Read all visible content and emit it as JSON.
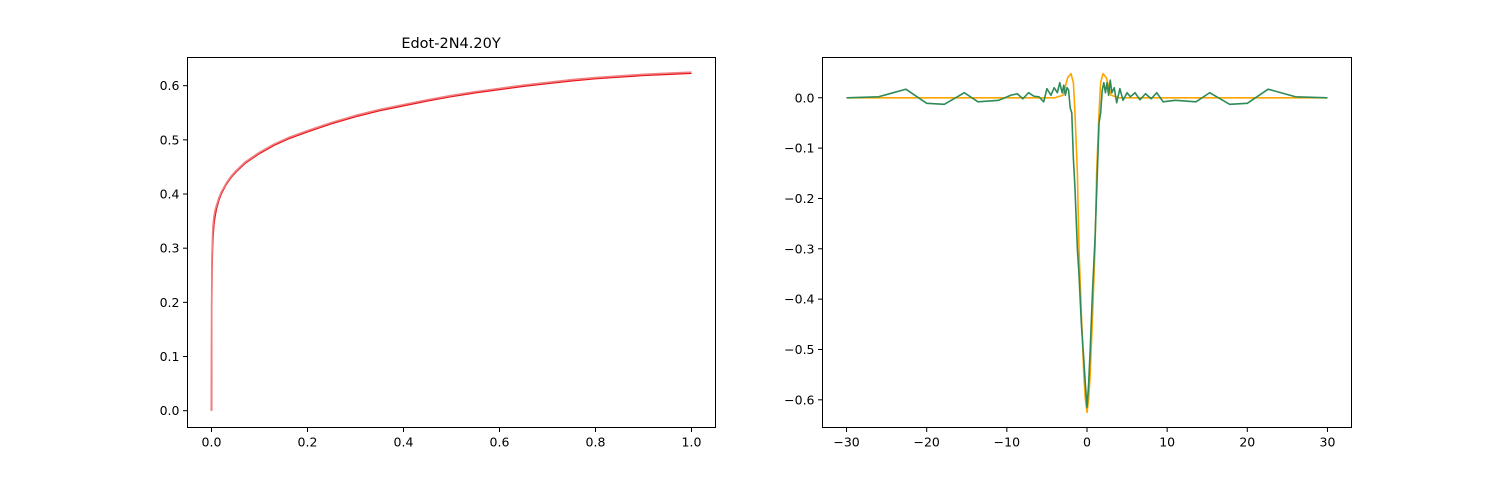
{
  "chart_data": [
    {
      "type": "line",
      "title": "Edot-2N4.20Y",
      "xlabel": "",
      "ylabel": "",
      "xlim": [
        -0.05,
        1.05
      ],
      "ylim": [
        -0.031,
        0.652
      ],
      "xticks": [
        0.0,
        0.2,
        0.4,
        0.6,
        0.8,
        1.0
      ],
      "xtick_labels": [
        "0.0",
        "0.2",
        "0.4",
        "0.6",
        "0.8",
        "1.0"
      ],
      "yticks": [
        0.0,
        0.1,
        0.2,
        0.3,
        0.4,
        0.5,
        0.6
      ],
      "ytick_labels": [
        "0.0",
        "0.1",
        "0.2",
        "0.3",
        "0.4",
        "0.5",
        "0.6"
      ],
      "grid": false,
      "series": [
        {
          "color": "#e8121a",
          "x": [
            0,
            0.0005,
            0.001,
            0.002,
            0.003,
            0.005,
            0.0075,
            0.01,
            0.015,
            0.02,
            0.03,
            0.04,
            0.05,
            0.07,
            0.1,
            0.13,
            0.16,
            0.2,
            0.25,
            0.3,
            0.35,
            0.4,
            0.45,
            0.5,
            0.55,
            0.6,
            0.65,
            0.7,
            0.75,
            0.8,
            0.85,
            0.9,
            0.95,
            1.0
          ],
          "y": [
            0.0,
            0.2,
            0.26,
            0.3,
            0.32,
            0.345,
            0.36,
            0.372,
            0.388,
            0.4,
            0.417,
            0.43,
            0.44,
            0.457,
            0.475,
            0.49,
            0.502,
            0.515,
            0.53,
            0.543,
            0.554,
            0.563,
            0.572,
            0.58,
            0.587,
            0.593,
            0.599,
            0.604,
            0.609,
            0.613,
            0.616,
            0.619,
            0.621,
            0.623
          ]
        },
        {
          "color": "#f08080",
          "x": [
            0,
            0.0005,
            0.001,
            0.002,
            0.003,
            0.005,
            0.0075,
            0.01,
            0.015,
            0.02,
            0.03,
            0.04,
            0.05,
            0.07,
            0.1,
            0.13,
            0.16,
            0.2,
            0.25,
            0.3,
            0.35,
            0.4,
            0.45,
            0.5,
            0.55,
            0.6,
            0.65,
            0.7,
            0.75,
            0.8,
            0.85,
            0.9,
            0.95,
            1.0
          ],
          "y": [
            0.0,
            0.23,
            0.285,
            0.32,
            0.34,
            0.358,
            0.37,
            0.378,
            0.392,
            0.403,
            0.419,
            0.432,
            0.442,
            0.459,
            0.477,
            0.492,
            0.504,
            0.517,
            0.532,
            0.545,
            0.556,
            0.565,
            0.574,
            0.582,
            0.589,
            0.595,
            0.601,
            0.606,
            0.611,
            0.615,
            0.618,
            0.621,
            0.623,
            0.625
          ]
        }
      ]
    },
    {
      "type": "line",
      "title": "",
      "xlabel": "",
      "ylabel": "",
      "xlim": [
        -33,
        33
      ],
      "ylim": [
        -0.655,
        0.08
      ],
      "xticks": [
        -30,
        -20,
        -10,
        0,
        10,
        20,
        30
      ],
      "xtick_labels": [
        "−30",
        "−20",
        "−10",
        "0",
        "10",
        "20",
        "30"
      ],
      "yticks": [
        -0.6,
        -0.5,
        -0.4,
        -0.3,
        -0.2,
        -0.1,
        0.0
      ],
      "ytick_labels": [
        "−0.6",
        "−0.5",
        "−0.4",
        "−0.3",
        "−0.2",
        "−0.1",
        "0.0"
      ],
      "grid": false,
      "series": [
        {
          "color": "#ffa500",
          "x": [
            -30,
            -4,
            -3,
            -2.4,
            -2.0,
            -1.7,
            -1.5,
            -1.2,
            -1.0,
            -0.7,
            -0.4,
            -0.2,
            0,
            0.2,
            0.4,
            0.7,
            1.0,
            1.2,
            1.5,
            1.7,
            2.0,
            2.4,
            3.0,
            4.0,
            30
          ],
          "y": [
            0,
            0,
            0.005,
            0.04,
            0.048,
            0.03,
            -0.03,
            -0.15,
            -0.3,
            -0.43,
            -0.55,
            -0.6,
            -0.625,
            -0.6,
            -0.55,
            -0.43,
            -0.3,
            -0.15,
            -0.03,
            0.03,
            0.048,
            0.04,
            0.005,
            0,
            0
          ]
        },
        {
          "color": "#2e8b57",
          "x": [
            -30,
            -26,
            -22.6,
            -20,
            -17.8,
            -15.3,
            -13.6,
            -11,
            -9.5,
            -8.7,
            -8,
            -7.3,
            -6.6,
            -6,
            -5.4,
            -5,
            -4.5,
            -4.1,
            -3.7,
            -3.4,
            -3.1,
            -2.9,
            -2.7,
            -2.5,
            -2.3,
            -2.1,
            -1.9,
            -1.7,
            -1.5,
            -1.2,
            -1.0,
            -0.7,
            -0.4,
            -0.2,
            0,
            0.2,
            0.4,
            0.7,
            1.0,
            1.2,
            1.5,
            1.7,
            1.9,
            2.1,
            2.3,
            2.5,
            2.7,
            2.9,
            3.1,
            3.4,
            3.7,
            4.1,
            4.5,
            5.0,
            5.4,
            6.0,
            6.6,
            7.3,
            8.0,
            8.7,
            9.5,
            11,
            13.6,
            15.3,
            17.8,
            20,
            22.6,
            26,
            30
          ],
          "y": [
            0,
            0.002,
            0.017,
            -0.011,
            -0.013,
            0.01,
            -0.008,
            -0.005,
            0.005,
            0.008,
            -0.002,
            0.01,
            0.003,
            0.002,
            -0.008,
            0.018,
            0.005,
            0.02,
            0.01,
            0.03,
            0.01,
            0.025,
            0.005,
            0.02,
            0.015,
            -0.02,
            -0.03,
            -0.12,
            -0.18,
            -0.3,
            -0.35,
            -0.45,
            -0.52,
            -0.57,
            -0.615,
            -0.57,
            -0.5,
            -0.38,
            -0.28,
            -0.19,
            -0.05,
            -0.03,
            0.015,
            0.03,
            0.01,
            0.03,
            0.005,
            0.035,
            0.01,
            0.02,
            -0.01,
            0.018,
            -0.005,
            0.01,
            0.002,
            0.01,
            -0.004,
            0.008,
            -0.002,
            0.01,
            -0.008,
            -0.005,
            -0.008,
            0.01,
            -0.013,
            -0.011,
            0.017,
            0.002,
            0
          ]
        }
      ]
    }
  ]
}
